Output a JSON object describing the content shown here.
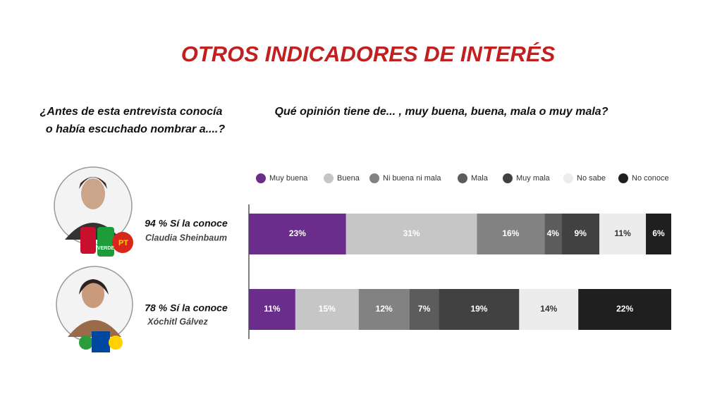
{
  "title": "OTROS INDICADORES DE INTERÉS",
  "left_panel": {
    "question_lines": [
      "¿Antes de esta entrevista conocía",
      "o había escuchado nombrar a....?"
    ],
    "awareness": [
      "94 % Sí la conoce",
      "78 % Sí la conoce"
    ],
    "logo_texts": [
      "VERDE",
      "PT"
    ]
  },
  "chart_data": {
    "type": "stacked_bar",
    "title": "Qué opinión tiene de... , muy buena, buena, mala o muy mala?",
    "categories": [
      "Claudia Sheinbaum",
      "Xóchitl Gálvez"
    ],
    "xlim": [
      0,
      100
    ],
    "series": [
      {
        "name": "Muy buena",
        "color": "#6a2d8b",
        "values": [
          23,
          11
        ],
        "value_labels": [
          "23%",
          "11%"
        ]
      },
      {
        "name": "Buena",
        "color": "#c6c6c6",
        "values": [
          31,
          15
        ],
        "value_labels": [
          "31%",
          "15%"
        ]
      },
      {
        "name": "Ni buena ni mala",
        "color": "#828282",
        "values": [
          16,
          12
        ],
        "value_labels": [
          "16%",
          "12%"
        ]
      },
      {
        "name": "Mala",
        "color": "#5c5c5c",
        "values": [
          4,
          7
        ],
        "value_labels": [
          "4%",
          "7%"
        ]
      },
      {
        "name": "Muy mala",
        "color": "#414141",
        "values": [
          9,
          19
        ],
        "value_labels": [
          "9%",
          "19%"
        ]
      },
      {
        "name": "No sabe",
        "color": "#ececec",
        "values": [
          11,
          14
        ],
        "value_labels": [
          "11%",
          "14%"
        ]
      },
      {
        "name": "No conoce",
        "color": "#1f1f1f",
        "values": [
          6,
          22
        ],
        "value_labels": [
          "6%",
          "22%"
        ]
      }
    ]
  }
}
